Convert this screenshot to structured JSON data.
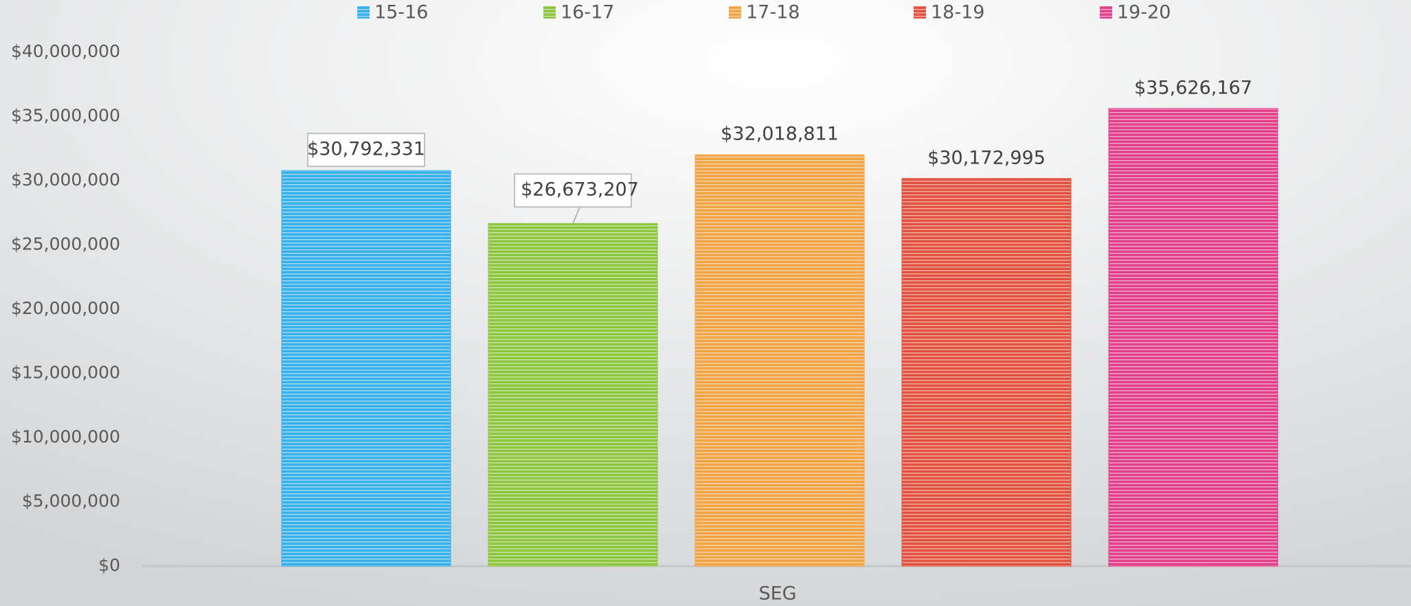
{
  "chart_data": {
    "type": "bar",
    "categories": [
      "SEG"
    ],
    "x_label": "SEG",
    "series": [
      {
        "name": "15-16",
        "color": "#3ab0ea",
        "values": [
          30792331
        ],
        "value_labels": [
          "$30,792,331"
        ]
      },
      {
        "name": "16-17",
        "color": "#8cc640",
        "values": [
          26673207
        ],
        "value_labels": [
          "$26,673,207"
        ]
      },
      {
        "name": "17-18",
        "color": "#f2a444",
        "values": [
          32018811
        ],
        "value_labels": [
          "$32,018,811"
        ]
      },
      {
        "name": "18-19",
        "color": "#e2523e",
        "values": [
          30172995
        ],
        "value_labels": [
          "$30,172,995"
        ]
      },
      {
        "name": "19-20",
        "color": "#e2408a",
        "values": [
          35626167
        ],
        "value_labels": [
          "$35,626,167"
        ]
      }
    ],
    "ylim": [
      0,
      40000000
    ],
    "yticks": [
      {
        "value": 0,
        "label": "$0"
      },
      {
        "value": 5000000,
        "label": "$5,000,000"
      },
      {
        "value": 10000000,
        "label": "$10,000,000"
      },
      {
        "value": 15000000,
        "label": "$15,000,000"
      },
      {
        "value": 20000000,
        "label": "$20,000,000"
      },
      {
        "value": 25000000,
        "label": "$25,000,000"
      },
      {
        "value": 30000000,
        "label": "$30,000,000"
      },
      {
        "value": 35000000,
        "label": "$35,000,000"
      },
      {
        "value": 40000000,
        "label": "$40,000,000"
      }
    ],
    "legend": "top"
  }
}
